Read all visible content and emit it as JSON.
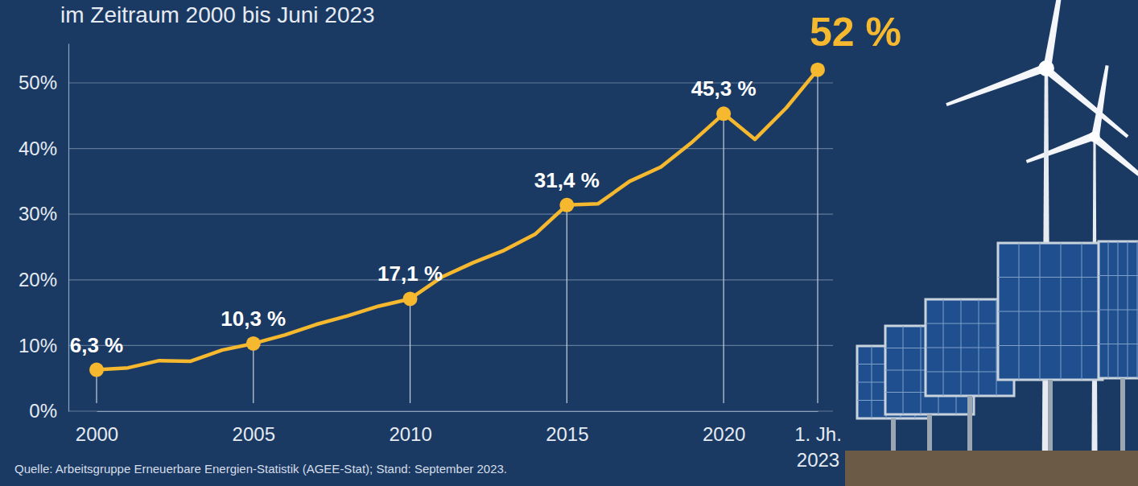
{
  "chart_data": {
    "type": "line",
    "title": "im Zeitraum 2000 bis Juni 2023",
    "source": "Quelle: Arbeitsgruppe Erneuerbare Energien-Statistik (AGEE-Stat); Stand: September 2023.",
    "categories": [
      "2000",
      null,
      null,
      null,
      null,
      "2005",
      null,
      null,
      null,
      null,
      "2010",
      null,
      null,
      null,
      null,
      "2015",
      null,
      null,
      null,
      null,
      "2020",
      null,
      null,
      "1. Jh. 2023"
    ],
    "values": [
      6.3,
      6.6,
      7.7,
      7.6,
      9.3,
      10.3,
      11.6,
      13.2,
      14.5,
      16.0,
      17.1,
      20.4,
      22.6,
      24.5,
      27.0,
      31.4,
      31.6,
      35.0,
      37.2,
      41.0,
      45.3,
      41.4,
      46.2,
      52
    ],
    "value_labels": [
      "6,3 %",
      null,
      null,
      null,
      null,
      "10,3 %",
      null,
      null,
      null,
      null,
      "17,1 %",
      null,
      null,
      null,
      null,
      "31,4 %",
      null,
      null,
      null,
      null,
      "45,3 %",
      null,
      null,
      "52 %"
    ],
    "data_labels": true,
    "marker": "circle",
    "color": "#f5b82e",
    "ylim": [
      0,
      56
    ],
    "yticks": [
      {
        "value": 0,
        "label": "0%"
      },
      {
        "value": 10,
        "label": "10%"
      },
      {
        "value": 20,
        "label": "20%"
      },
      {
        "value": 30,
        "label": "30%"
      },
      {
        "value": 40,
        "label": "40%"
      },
      {
        "value": 50,
        "label": "50%"
      }
    ],
    "grid": true
  }
}
